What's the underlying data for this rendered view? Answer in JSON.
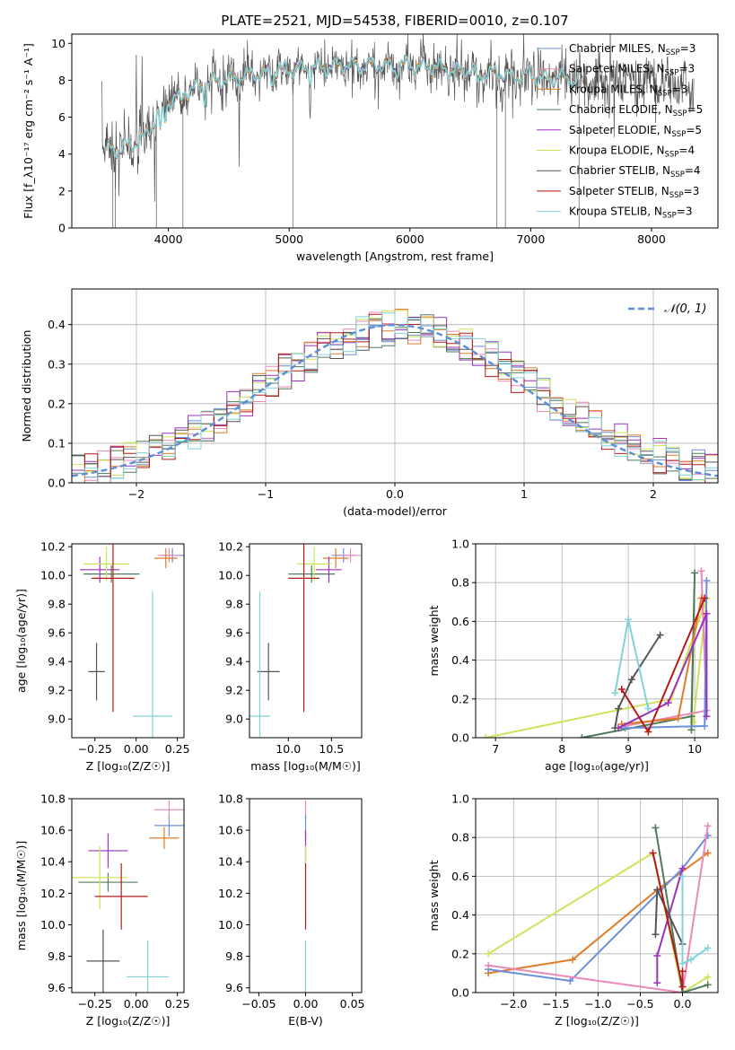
{
  "figure": {
    "title": "PLATE=2521, MJD=54538, FIBERID=0010, z=0.107"
  },
  "colors": {
    "chabrier_miles": "#6a8fdc",
    "salpeter_miles": "#e889b8",
    "kroupa_miles": "#e07b2a",
    "chabrier_elodie": "#4f7a5a",
    "salpeter_elodie": "#9a32c0",
    "kroupa_elodie": "#cfe35a",
    "chabrier_stelib": "#555555",
    "salpeter_stelib": "#b51a1a",
    "kroupa_stelib": "#7fd3d8",
    "normal_curve": "#5b8ed6"
  },
  "chart_data": [
    {
      "id": "spectrum",
      "type": "line",
      "xlabel": "wavelength [Angstrom, rest frame]",
      "ylabel": "Flux [f_λ10⁻¹⁷ erg cm⁻² s⁻¹ A⁻¹]",
      "xlim": [
        3200,
        8550
      ],
      "ylim": [
        0,
        10.5
      ],
      "xticks": [
        4000,
        5000,
        6000,
        7000,
        8000
      ],
      "yticks": [
        0,
        2,
        4,
        6,
        8,
        10
      ],
      "grid": false,
      "legend": "right",
      "continuum": {
        "x": [
          3450,
          3600,
          3800,
          4000,
          4300,
          4700,
          5000,
          5500,
          6000,
          6500,
          7000,
          7500,
          8000,
          8350
        ],
        "y": [
          4.5,
          4.2,
          4.9,
          6.9,
          7.8,
          8.3,
          8.6,
          8.8,
          8.8,
          8.5,
          8.2,
          8.0,
          7.9,
          7.5
        ]
      },
      "series": [
        {
          "key": "chabrier_miles",
          "name": "Chabrier MILES, N_SSP=3"
        },
        {
          "key": "salpeter_miles",
          "name": "Salpeter MILES, N_SSP=3"
        },
        {
          "key": "kroupa_miles",
          "name": "Kroupa MILES, N_SSP=3"
        },
        {
          "key": "chabrier_elodie",
          "name": "Chabrier ELODIE, N_SSP=5"
        },
        {
          "key": "salpeter_elodie",
          "name": "Salpeter ELODIE, N_SSP=5"
        },
        {
          "key": "kroupa_elodie",
          "name": "Kroupa ELODIE, N_SSP=4"
        },
        {
          "key": "chabrier_stelib",
          "name": "Chabrier STELIB, N_SSP=4"
        },
        {
          "key": "salpeter_stelib",
          "name": "Salpeter STELIB, N_SSP=3"
        },
        {
          "key": "kroupa_stelib",
          "name": "Kroupa STELIB, N_SSP=3"
        }
      ]
    },
    {
      "id": "residuals",
      "type": "histogram",
      "xlabel": "(data-model)/error",
      "ylabel": "Normed distribution",
      "xlim": [
        -2.5,
        2.5
      ],
      "ylim": [
        0,
        0.49
      ],
      "xticks": [
        -2,
        -1,
        0,
        1,
        2
      ],
      "yticks": [
        0.0,
        0.1,
        0.2,
        0.3,
        0.4
      ],
      "grid": true,
      "legend": "top-right",
      "legend_label": "𝒩(0, 1)",
      "bin_width": 0.1
    },
    {
      "id": "age_vs_Z",
      "type": "errorbar",
      "xlabel": "Z [log₁₀(Z/Z☉)]",
      "ylabel": "age  [log₁₀(age/yr)]",
      "xlim": [
        -0.39,
        0.29
      ],
      "ylim": [
        8.87,
        10.22
      ],
      "xticks": [
        -0.25,
        0.0,
        0.25
      ],
      "yticks": [
        9.0,
        9.2,
        9.4,
        9.6,
        9.8,
        10.0,
        10.2
      ],
      "points": [
        {
          "c": "chabrier_miles",
          "x": 0.22,
          "xe": 0.07,
          "y": 10.14,
          "ye": 0.05
        },
        {
          "c": "salpeter_miles",
          "x": 0.2,
          "xe": 0.07,
          "y": 10.14,
          "ye": 0.05
        },
        {
          "c": "kroupa_miles",
          "x": 0.18,
          "xe": 0.07,
          "y": 10.12,
          "ye": 0.07
        },
        {
          "c": "chabrier_elodie",
          "x": -0.15,
          "xe": 0.17,
          "y": 10.01,
          "ye": 0.06
        },
        {
          "c": "salpeter_elodie",
          "x": -0.22,
          "xe": 0.12,
          "y": 10.04,
          "ye": 0.09
        },
        {
          "c": "kroupa_elodie",
          "x": -0.18,
          "xe": 0.14,
          "y": 10.08,
          "ye": 0.12
        },
        {
          "c": "chabrier_stelib",
          "x": -0.24,
          "xe": 0.05,
          "y": 9.33,
          "ye": 0.2
        },
        {
          "c": "salpeter_stelib",
          "x": -0.14,
          "xe": 0.13,
          "y": 9.98,
          "ye": 0.93
        },
        {
          "c": "kroupa_stelib",
          "x": 0.1,
          "xe": 0.12,
          "y": 9.02,
          "ye": 0.87
        }
      ]
    },
    {
      "id": "age_vs_mass",
      "type": "errorbar",
      "xlabel": "mass [log₁₀(M/M☉)]",
      "ylabel": "",
      "xlim": [
        9.55,
        10.85
      ],
      "ylim": [
        8.87,
        10.22
      ],
      "xticks": [
        10.0,
        10.5
      ],
      "yticks": [
        9.0,
        9.2,
        9.4,
        9.6,
        9.8,
        10.0,
        10.2
      ],
      "points": [
        {
          "c": "chabrier_miles",
          "x": 10.64,
          "xe": 0.14,
          "y": 10.14,
          "ye": 0.05
        },
        {
          "c": "salpeter_miles",
          "x": 10.72,
          "xe": 0.12,
          "y": 10.14,
          "ye": 0.05
        },
        {
          "c": "kroupa_miles",
          "x": 10.55,
          "xe": 0.15,
          "y": 10.12,
          "ye": 0.07
        },
        {
          "c": "chabrier_elodie",
          "x": 10.27,
          "xe": 0.27,
          "y": 10.01,
          "ye": 0.06
        },
        {
          "c": "salpeter_elodie",
          "x": 10.47,
          "xe": 0.15,
          "y": 10.04,
          "ye": 0.09
        },
        {
          "c": "kroupa_elodie",
          "x": 10.3,
          "xe": 0.2,
          "y": 10.08,
          "ye": 0.12
        },
        {
          "c": "chabrier_stelib",
          "x": 9.77,
          "xe": 0.13,
          "y": 9.33,
          "ye": 0.2
        },
        {
          "c": "salpeter_stelib",
          "x": 10.18,
          "xe": 0.18,
          "y": 9.98,
          "ye": 0.93
        },
        {
          "c": "kroupa_stelib",
          "x": 9.67,
          "xe": 0.12,
          "y": 9.02,
          "ye": 0.87
        }
      ]
    },
    {
      "id": "weight_vs_age",
      "type": "line",
      "xlabel": "age  [log₁₀(age/yr)]",
      "ylabel": "mass weight",
      "xlim": [
        6.7,
        10.35
      ],
      "ylim": [
        0,
        1.0
      ],
      "xticks": [
        7,
        8,
        9,
        10
      ],
      "yticks": [
        0.0,
        0.2,
        0.4,
        0.6,
        0.8,
        1.0
      ],
      "grid": true,
      "series": [
        {
          "c": "kroupa_elodie",
          "x": [
            6.85,
            9.65,
            10.18,
            9.98
          ],
          "y": [
            0.0,
            0.2,
            0.72,
            0.08
          ]
        },
        {
          "c": "chabrier_elodie",
          "x": [
            8.3,
            9.95,
            10.0,
            9.95
          ],
          "y": [
            0.0,
            0.11,
            0.85,
            0.04
          ]
        },
        {
          "c": "salpeter_miles",
          "x": [
            8.95,
            10.18,
            10.1
          ],
          "y": [
            0.06,
            0.14,
            0.86
          ]
        },
        {
          "c": "kroupa_miles",
          "x": [
            8.9,
            9.75,
            10.1
          ],
          "y": [
            0.07,
            0.1,
            0.72
          ]
        },
        {
          "c": "chabrier_miles",
          "x": [
            8.95,
            10.15,
            10.18
          ],
          "y": [
            0.05,
            0.06,
            0.81
          ]
        },
        {
          "c": "salpeter_elodie",
          "x": [
            8.85,
            9.6,
            10.18,
            10.18
          ],
          "y": [
            0.05,
            0.18,
            0.64,
            0.11
          ]
        },
        {
          "c": "chabrier_stelib",
          "x": [
            8.8,
            8.85,
            9.05,
            9.48
          ],
          "y": [
            0.05,
            0.15,
            0.3,
            0.53
          ]
        },
        {
          "c": "salpeter_stelib",
          "x": [
            8.9,
            9.3,
            10.15
          ],
          "y": [
            0.25,
            0.03,
            0.72
          ]
        },
        {
          "c": "kroupa_stelib",
          "x": [
            8.8,
            9.0,
            9.3
          ],
          "y": [
            0.23,
            0.61,
            0.15
          ]
        }
      ]
    },
    {
      "id": "mass_vs_Z",
      "type": "errorbar",
      "xlabel": "Z [log₁₀(Z/Z☉)]",
      "ylabel": "mass [log₁₀(M/M☉)]",
      "xlim": [
        -0.39,
        0.29
      ],
      "ylim": [
        9.57,
        10.8
      ],
      "xticks": [
        -0.25,
        0.0,
        0.25
      ],
      "yticks": [
        9.6,
        9.8,
        10.0,
        10.2,
        10.4,
        10.6,
        10.8
      ],
      "points": [
        {
          "c": "chabrier_miles",
          "x": 0.2,
          "xe": 0.09,
          "y": 10.63,
          "ye": 0.07
        },
        {
          "c": "salpeter_miles",
          "x": 0.2,
          "xe": 0.09,
          "y": 10.73,
          "ye": 0.06
        },
        {
          "c": "kroupa_miles",
          "x": 0.17,
          "xe": 0.09,
          "y": 10.55,
          "ye": 0.07
        },
        {
          "c": "chabrier_elodie",
          "x": -0.17,
          "xe": 0.18,
          "y": 10.27,
          "ye": 0.06
        },
        {
          "c": "salpeter_elodie",
          "x": -0.17,
          "xe": 0.12,
          "y": 10.47,
          "ye": 0.11
        },
        {
          "c": "kroupa_elodie",
          "x": -0.22,
          "xe": 0.17,
          "y": 10.3,
          "ye": 0.2
        },
        {
          "c": "chabrier_stelib",
          "x": -0.2,
          "xe": 0.1,
          "y": 9.77,
          "ye": 0.2
        },
        {
          "c": "salpeter_stelib",
          "x": -0.09,
          "xe": 0.16,
          "y": 10.18,
          "ye": 0.21
        },
        {
          "c": "kroupa_stelib",
          "x": 0.07,
          "xe": 0.13,
          "y": 9.67,
          "ye": 0.23
        }
      ]
    },
    {
      "id": "mass_vs_ebv",
      "type": "errorbar",
      "xlabel": "E(B-V)",
      "ylabel": "",
      "xlim": [
        -0.06,
        0.06
      ],
      "ylim": [
        9.57,
        10.8
      ],
      "xticks": [
        -0.05,
        0.0,
        0.05
      ],
      "yticks": [
        9.6,
        9.8,
        10.0,
        10.2,
        10.4,
        10.6,
        10.8
      ],
      "points": [
        {
          "c": "salpeter_miles",
          "x": 0.0,
          "xe": 0.0,
          "y": 10.73,
          "ye": 0.06
        },
        {
          "c": "chabrier_miles",
          "x": 0.0,
          "xe": 0.0,
          "y": 10.63,
          "ye": 0.07
        },
        {
          "c": "salpeter_elodie",
          "x": 0.0,
          "xe": 0.0,
          "y": 10.5,
          "ye": 0.1
        },
        {
          "c": "kroupa_elodie",
          "x": 0.0,
          "xe": 0.0,
          "y": 10.3,
          "ye": 0.2
        },
        {
          "c": "salpeter_stelib",
          "x": 0.0,
          "xe": 0.0,
          "y": 10.18,
          "ye": 0.21
        },
        {
          "c": "kroupa_stelib",
          "x": 0.0,
          "xe": 0.0,
          "y": 9.67,
          "ye": 0.23
        }
      ]
    },
    {
      "id": "weight_vs_Z",
      "type": "line",
      "xlabel": "Z [log₁₀(Z/Z☉)]",
      "ylabel": "mass weight",
      "xlim": [
        -2.45,
        0.42
      ],
      "ylim": [
        0,
        1.0
      ],
      "xticks": [
        -2.0,
        -1.5,
        -1.0,
        -0.5,
        0.0
      ],
      "yticks": [
        0.0,
        0.2,
        0.4,
        0.6,
        0.8,
        1.0
      ],
      "grid": true,
      "series": [
        {
          "c": "kroupa_elodie",
          "x": [
            -2.3,
            -0.35,
            0.0,
            0.3
          ],
          "y": [
            0.2,
            0.72,
            0.0,
            0.08
          ]
        },
        {
          "c": "kroupa_miles",
          "x": [
            -2.3,
            -1.3,
            -0.3,
            0.3
          ],
          "y": [
            0.1,
            0.17,
            0.53,
            0.72
          ]
        },
        {
          "c": "chabrier_miles",
          "x": [
            -2.3,
            -1.33,
            0.0,
            0.3
          ],
          "y": [
            0.12,
            0.06,
            0.64,
            0.81
          ]
        },
        {
          "c": "salpeter_miles",
          "x": [
            -2.3,
            0.0,
            0.3
          ],
          "y": [
            0.14,
            0.0,
            0.86
          ]
        },
        {
          "c": "chabrier_elodie",
          "x": [
            -0.32,
            0.0,
            0.3
          ],
          "y": [
            0.85,
            0.0,
            0.04
          ]
        },
        {
          "c": "salpeter_elodie",
          "x": [
            -0.3,
            -0.3,
            0.0
          ],
          "y": [
            0.05,
            0.19,
            0.64
          ]
        },
        {
          "c": "chabrier_stelib",
          "x": [
            -0.32,
            -0.3,
            0.0
          ],
          "y": [
            0.3,
            0.53,
            0.25
          ]
        },
        {
          "c": "salpeter_stelib",
          "x": [
            -0.35,
            0.0,
            0.0
          ],
          "y": [
            0.72,
            0.03,
            0.11
          ]
        },
        {
          "c": "kroupa_stelib",
          "x": [
            0.0,
            0.0,
            0.1,
            0.3
          ],
          "y": [
            0.6,
            0.15,
            0.17,
            0.23
          ]
        }
      ]
    }
  ]
}
